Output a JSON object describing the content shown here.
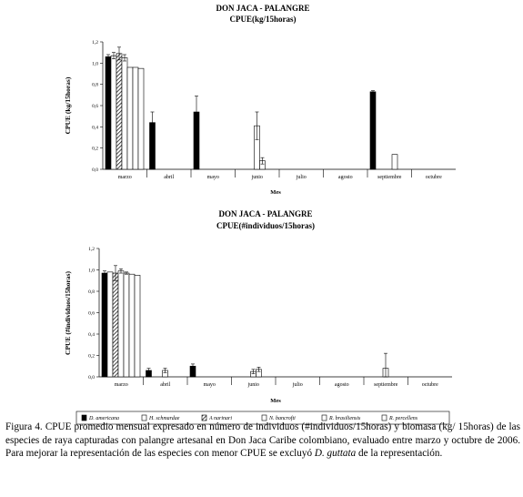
{
  "chart_data": [
    {
      "type": "bar",
      "title": "DON JACA - PALANGRE",
      "subtitle": "CPUE(kg/15horas)",
      "xlabel": "Mes",
      "ylabel": "CPUE (kg/15horas)",
      "ylim": [
        0,
        1.2
      ],
      "yticks": [
        "0,0",
        "0,2",
        "0,4",
        "0,6",
        "0,8",
        "1,0",
        "1,2"
      ],
      "grid": false,
      "categories": [
        "marzo",
        "abril",
        "mayo",
        "junio",
        "julio",
        "agosto",
        "septiembre",
        "octubre"
      ],
      "series": [
        {
          "name": "D. americana",
          "values": [
            1.06,
            0.44,
            0.54,
            0,
            0,
            0,
            0.73,
            0
          ],
          "errors": [
            0.02,
            0.1,
            0.15,
            0,
            0,
            0,
            0.01,
            0
          ]
        },
        {
          "name": "H. schmardae",
          "values": [
            1.07,
            0,
            0,
            0,
            0,
            0,
            0,
            0
          ],
          "errors": [
            0.03,
            0,
            0,
            0,
            0,
            0,
            0,
            0
          ]
        },
        {
          "name": "A narinari",
          "values": [
            1.09,
            0,
            0,
            0,
            0,
            0,
            0,
            0
          ],
          "errors": [
            0.06,
            0,
            0,
            0,
            0,
            0,
            0,
            0
          ]
        },
        {
          "name": "N. bancrofti",
          "values": [
            1.05,
            0,
            0,
            0.41,
            0,
            0,
            0,
            0
          ],
          "errors": [
            0.03,
            0,
            0,
            0.13,
            0,
            0,
            0,
            0
          ]
        },
        {
          "name": "R. brasiliensis",
          "values": [
            0.96,
            0,
            0,
            0.08,
            0,
            0,
            0.14,
            0
          ],
          "errors": [
            0,
            0,
            0,
            0.03,
            0,
            0,
            0,
            0
          ]
        },
        {
          "name": "R. percellens",
          "values": [
            0.96,
            0,
            0,
            0,
            0,
            0,
            0,
            0
          ],
          "errors": [
            0,
            0,
            0,
            0,
            0,
            0,
            0,
            0
          ]
        },
        {
          "name": "R. percellens",
          "values": [
            0.95,
            0,
            0,
            0,
            0,
            0,
            0,
            0
          ],
          "errors": [
            0,
            0,
            0,
            0,
            0,
            0,
            0,
            0
          ]
        }
      ]
    },
    {
      "type": "bar",
      "title": "DON JACA - PALANGRE",
      "subtitle": "CPUE(#individuos/15horas)",
      "xlabel": "Mes",
      "ylabel": "CPUE (#individuos/15horas)",
      "ylim": [
        0,
        1.2
      ],
      "yticks": [
        "0,0",
        "0,2",
        "0,4",
        "0,6",
        "0,8",
        "1,0",
        "1,2"
      ],
      "grid": false,
      "categories": [
        "marzo",
        "abril",
        "mayo",
        "junio",
        "julio",
        "agosto",
        "septiembre",
        "octubre"
      ],
      "series": [
        {
          "name": "D. americana",
          "values": [
            0.97,
            0.06,
            0.1,
            0,
            0,
            0,
            0,
            0
          ],
          "errors": [
            0.02,
            0.02,
            0.02,
            0,
            0,
            0,
            0,
            0
          ]
        },
        {
          "name": "H. schmardae",
          "values": [
            0.98,
            0,
            0,
            0,
            0,
            0,
            0,
            0
          ],
          "errors": [
            0,
            0,
            0,
            0,
            0,
            0,
            0,
            0
          ]
        },
        {
          "name": "A narinari",
          "values": [
            0.97,
            0,
            0,
            0,
            0,
            0,
            0,
            0
          ],
          "errors": [
            0.07,
            0,
            0,
            0,
            0,
            0,
            0,
            0
          ]
        },
        {
          "name": "N. bancrofti",
          "values": [
            0.99,
            0.06,
            0,
            0.05,
            0,
            0,
            0.08,
            0
          ],
          "errors": [
            0.02,
            0.02,
            0,
            0.02,
            0,
            0,
            0.14,
            0
          ]
        },
        {
          "name": "R. brasiliensis",
          "values": [
            0.97,
            0,
            0,
            0.07,
            0,
            0,
            0,
            0
          ],
          "errors": [
            0.01,
            0,
            0,
            0.02,
            0,
            0,
            0,
            0
          ]
        },
        {
          "name": "R. percellens",
          "values": [
            0.96,
            0,
            0,
            0,
            0,
            0,
            0,
            0
          ],
          "errors": [
            0,
            0,
            0,
            0,
            0,
            0,
            0,
            0
          ]
        },
        {
          "name": "R. percellens",
          "values": [
            0.95,
            0,
            0,
            0,
            0,
            0,
            0,
            0
          ],
          "errors": [
            0,
            0,
            0,
            0,
            0,
            0,
            0,
            0
          ]
        }
      ]
    }
  ],
  "legend": {
    "items": [
      {
        "name": "D. americana",
        "pattern": "solid"
      },
      {
        "name": "H. schmardae",
        "pattern": "empty"
      },
      {
        "name": "A narinari",
        "pattern": "hatch"
      },
      {
        "name": "N. bancrofti",
        "pattern": "empty"
      },
      {
        "name": "R. brasiliensis",
        "pattern": "empty"
      },
      {
        "name": "R. percellens",
        "pattern": "empty"
      }
    ]
  },
  "caption": {
    "main": "Figura 4. CPUE promedio mensual expresado en número de individuos (#individuos/15horas) y biomasa (kg/ 15horas) de las especies de raya capturadas con palangre artesanal en Don Jaca Caribe colombiano, evaluado entre marzo y octubre de 2006. Para mejorar la representación de las especies con menor CPUE se excluyó ",
    "species": "D. guttata",
    "end": " de la representación."
  }
}
